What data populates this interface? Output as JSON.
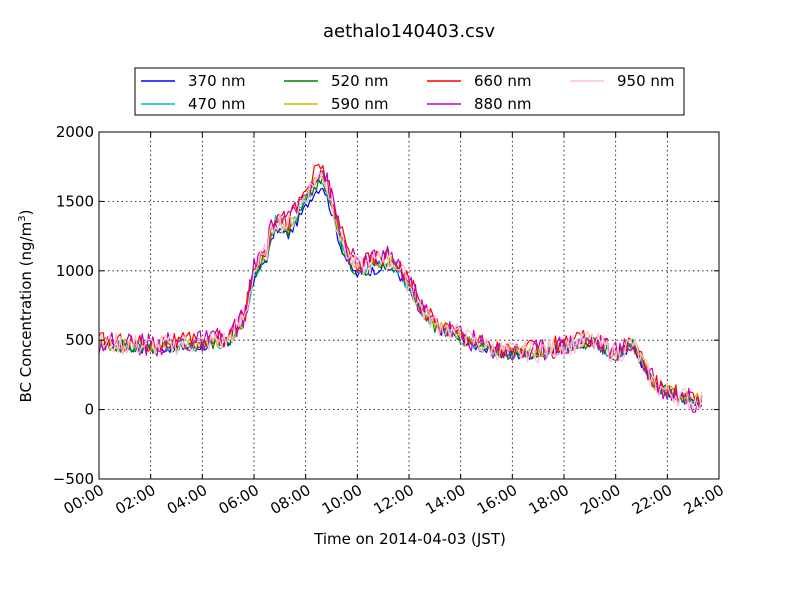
{
  "chart_data": {
    "type": "line",
    "title": "aethalo140403.csv",
    "xlabel": "Time on 2014-04-03 (JST)",
    "ylabel": "BC Concentration (ng/m",
    "ylabel_sup": "3",
    "ylabel_end": ")",
    "xlim": [
      "00:00",
      "24:00"
    ],
    "ylim": [
      -500,
      2000
    ],
    "x_ticks": [
      "00:00",
      "02:00",
      "04:00",
      "06:00",
      "08:00",
      "10:00",
      "12:00",
      "14:00",
      "16:00",
      "18:00",
      "20:00",
      "22:00",
      "24:00"
    ],
    "y_ticks": [
      "2000",
      "1500",
      "1000",
      "500",
      "0",
      "−500"
    ],
    "grid": true,
    "legend_placement": "top-center",
    "x_step_minutes": 5,
    "x_end": "23:20",
    "base_series": [
      {
        "t": "00:00",
        "v": 480
      },
      {
        "t": "01:00",
        "v": 470
      },
      {
        "t": "02:00",
        "v": 460
      },
      {
        "t": "03:00",
        "v": 470
      },
      {
        "t": "04:00",
        "v": 480
      },
      {
        "t": "05:00",
        "v": 500
      },
      {
        "t": "05:40",
        "v": 680
      },
      {
        "t": "06:00",
        "v": 1000
      },
      {
        "t": "06:30",
        "v": 1150
      },
      {
        "t": "06:50",
        "v": 1380
      },
      {
        "t": "07:20",
        "v": 1320
      },
      {
        "t": "07:50",
        "v": 1480
      },
      {
        "t": "08:20",
        "v": 1650
      },
      {
        "t": "08:40",
        "v": 1700
      },
      {
        "t": "09:00",
        "v": 1500
      },
      {
        "t": "09:20",
        "v": 1250
      },
      {
        "t": "09:40",
        "v": 1100
      },
      {
        "t": "10:00",
        "v": 1020
      },
      {
        "t": "10:30",
        "v": 1050
      },
      {
        "t": "11:00",
        "v": 1080
      },
      {
        "t": "11:30",
        "v": 1060
      },
      {
        "t": "12:00",
        "v": 900
      },
      {
        "t": "12:30",
        "v": 720
      },
      {
        "t": "13:00",
        "v": 620
      },
      {
        "t": "14:00",
        "v": 530
      },
      {
        "t": "15:00",
        "v": 450
      },
      {
        "t": "16:00",
        "v": 410
      },
      {
        "t": "17:00",
        "v": 420
      },
      {
        "t": "18:00",
        "v": 460
      },
      {
        "t": "19:00",
        "v": 500
      },
      {
        "t": "19:30",
        "v": 460
      },
      {
        "t": "20:00",
        "v": 400
      },
      {
        "t": "20:40",
        "v": 480
      },
      {
        "t": "21:00",
        "v": 350
      },
      {
        "t": "21:30",
        "v": 180
      },
      {
        "t": "22:00",
        "v": 130
      },
      {
        "t": "22:30",
        "v": 100
      },
      {
        "t": "23:00",
        "v": 60
      },
      {
        "t": "23:20",
        "v": 80
      }
    ],
    "series": [
      {
        "name": "370 nm",
        "color": "#0000ff",
        "scale": 0.95,
        "noise": 35
      },
      {
        "name": "470 nm",
        "color": "#00bfbf",
        "scale": 0.98,
        "noise": 45
      },
      {
        "name": "520 nm",
        "color": "#008000",
        "scale": 0.97,
        "noise": 45
      },
      {
        "name": "590 nm",
        "color": "#bfbf00",
        "scale": 1.0,
        "noise": 50
      },
      {
        "name": "660 nm",
        "color": "#ff0000",
        "scale": 1.03,
        "noise": 70
      },
      {
        "name": "880 nm",
        "color": "#bf00bf",
        "scale": 1.02,
        "noise": 85
      },
      {
        "name": "950 nm",
        "color": "#ffc0cb",
        "scale": 1.0,
        "noise": 80
      }
    ]
  }
}
